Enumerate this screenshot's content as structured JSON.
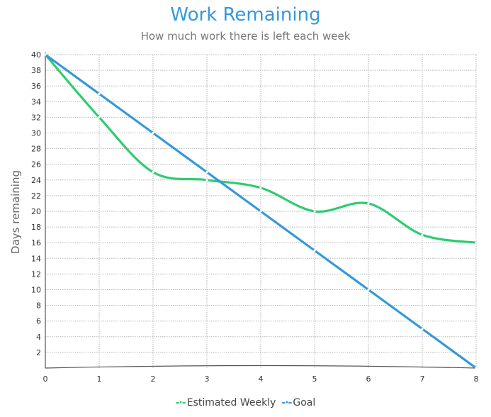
{
  "chart_data": {
    "type": "line",
    "title": "Work Remaining",
    "subtitle": "How much work there is left each week",
    "xlabel": "",
    "ylabel": "Days remaining",
    "x": [
      0,
      1,
      2,
      3,
      4,
      5,
      6,
      7,
      8
    ],
    "xlim": [
      0,
      8
    ],
    "ylim": [
      0,
      40
    ],
    "yticks": [
      2,
      4,
      6,
      8,
      10,
      12,
      14,
      16,
      18,
      20,
      22,
      24,
      26,
      28,
      30,
      32,
      34,
      36,
      38,
      40
    ],
    "xticks": [
      0,
      1,
      2,
      3,
      4,
      5,
      6,
      7,
      8
    ],
    "grid": true,
    "legend_position": "bottom",
    "series": [
      {
        "name": "Estimated Weekly",
        "color": "#2ecc71",
        "values": [
          40,
          32,
          25,
          24,
          23,
          20,
          21,
          17,
          16
        ]
      },
      {
        "name": "Goal",
        "color": "#3498db",
        "values": [
          40,
          35,
          30,
          25,
          20,
          15,
          10,
          5,
          0
        ]
      }
    ]
  }
}
